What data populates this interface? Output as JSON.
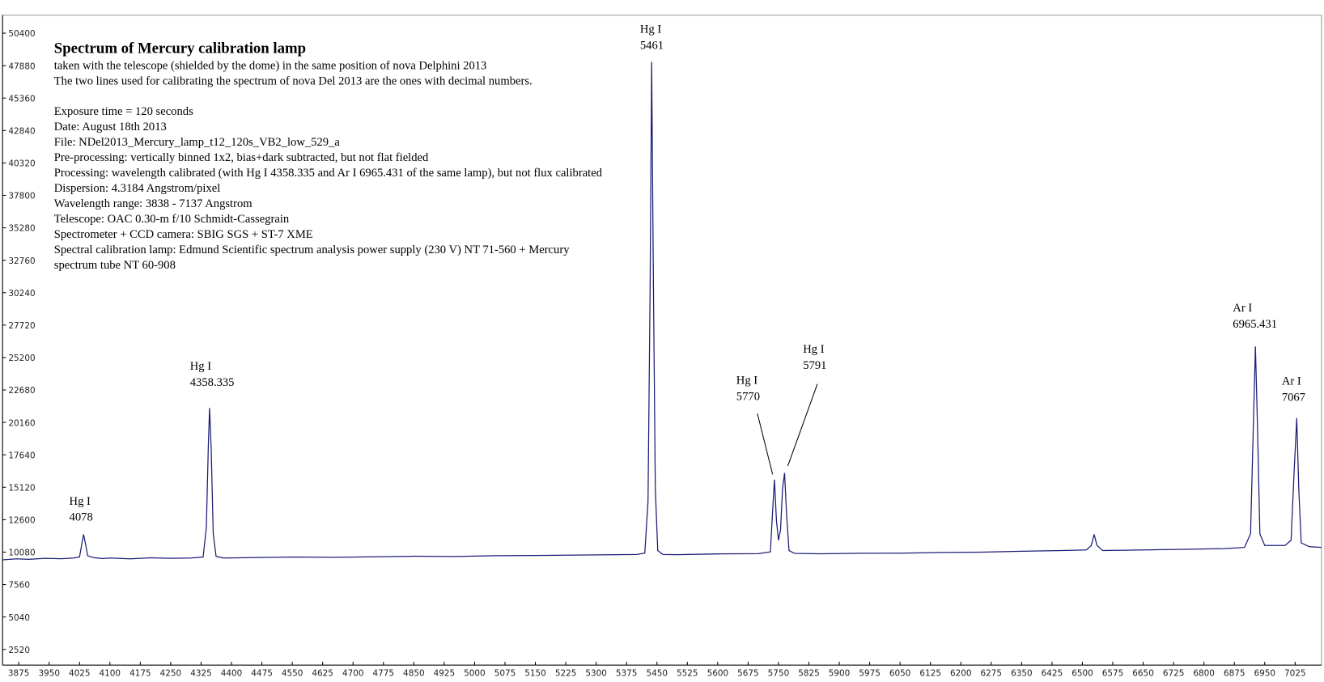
{
  "chart_data": {
    "type": "line",
    "title": "Spectrum of Mercury calibration lamp",
    "notes": [
      "taken with the telescope (shielded by the dome) in the same position of nova Delphini 2013",
      "The two lines used for calibrating the spectrum of nova Del 2013 are the ones with decimal numbers.",
      "Exposure time = 120 seconds",
      "Date: August 18th 2013",
      "File: NDel2013_Mercury_lamp_t12_120s_VB2_low_529_a",
      "Pre-processing: vertically binned 1x2, bias+dark subtracted, but not flat fielded",
      "Processing: wavelength calibrated (with Hg I 4358.335 and Ar I 6965.431 of the same lamp), but not flux calibrated",
      "Dispersion:  4.3184 Angstrom/pixel",
      "Wavelength range: 3838 - 7137 Angstrom",
      "Telescope: OAC 0.30-m f/10 Schmidt-Cassegrain",
      "Spectrometer + CCD camera: SBIG SGS + ST-7 XME",
      "Spectral calibration lamp: Edmund Scientific spectrum analysis power supply (230 V) NT 71-560 + Mercury",
      "spectrum tube NT 60-908"
    ],
    "annotations": [
      [
        "Hg I",
        "4078"
      ],
      [
        "Hg I",
        "4358.335"
      ],
      [
        "Hg I",
        "5461"
      ],
      [
        "Hg I",
        "5770"
      ],
      [
        "Hg I",
        "5791"
      ],
      [
        "Ar I",
        "6965.431"
      ],
      [
        "Ar I",
        "7067"
      ]
    ],
    "color": "#1c1c78",
    "x": [
      3835,
      3870,
      3900,
      3940,
      3980,
      4010,
      4025,
      4030,
      4035,
      4040,
      4045,
      4060,
      4080,
      4100,
      4150,
      4200,
      4250,
      4300,
      4330,
      4338,
      4343,
      4346,
      4350,
      4355,
      4362,
      4380,
      4450,
      4550,
      4650,
      4750,
      4850,
      4950,
      5050,
      5150,
      5250,
      5350,
      5400,
      5420,
      5428,
      5433,
      5437,
      5441,
      5446,
      5452,
      5465,
      5500,
      5600,
      5700,
      5730,
      5735,
      5740,
      5745,
      5750,
      5755,
      5760,
      5765,
      5770,
      5776,
      5790,
      5850,
      5950,
      6050,
      6150,
      6250,
      6350,
      6450,
      6510,
      6522,
      6529,
      6536,
      6550,
      6650,
      6750,
      6850,
      6900,
      6915,
      6922,
      6927,
      6932,
      6938,
      6950,
      7000,
      7015,
      7022,
      7029,
      7034,
      7040,
      7060,
      7090
    ],
    "values": [
      9480,
      9560,
      9520,
      9600,
      9570,
      9620,
      9700,
      10600,
      11450,
      10700,
      9800,
      9650,
      9580,
      9620,
      9560,
      9640,
      9600,
      9620,
      9700,
      12000,
      18500,
      21280,
      18000,
      11500,
      9750,
      9620,
      9650,
      9700,
      9680,
      9720,
      9760,
      9740,
      9800,
      9820,
      9850,
      9880,
      9900,
      10000,
      14000,
      30000,
      48170,
      32000,
      15000,
      10200,
      9900,
      9880,
      9940,
      9960,
      10100,
      13000,
      15713,
      12500,
      11000,
      11800,
      15000,
      16237,
      13000,
      10200,
      9980,
      9950,
      9990,
      10000,
      10050,
      10080,
      10150,
      10200,
      10250,
      10600,
      11455,
      10600,
      10200,
      10250,
      10300,
      10350,
      10450,
      11500,
      20000,
      26063,
      20000,
      11500,
      10600,
      10600,
      11000,
      16000,
      20494,
      15000,
      10800,
      10500,
      10450
    ],
    "xlim": [
      3835,
      7090
    ],
    "ylim": [
      1300,
      51800
    ],
    "xticks": [
      3875,
      3950,
      4025,
      4100,
      4175,
      4250,
      4325,
      4400,
      4475,
      4550,
      4625,
      4700,
      4775,
      4850,
      4925,
      5000,
      5075,
      5150,
      5225,
      5300,
      5375,
      5450,
      5525,
      5600,
      5675,
      5750,
      5825,
      5900,
      5975,
      6050,
      6125,
      6200,
      6275,
      6350,
      6425,
      6500,
      6575,
      6650,
      6725,
      6800,
      6875,
      6950,
      7025
    ],
    "yticks": [
      2520,
      5040,
      7560,
      10080,
      12600,
      15120,
      17640,
      20160,
      22680,
      25200,
      27720,
      30240,
      32760,
      35280,
      37800,
      40320,
      42840,
      45360,
      47880,
      50400
    ]
  }
}
